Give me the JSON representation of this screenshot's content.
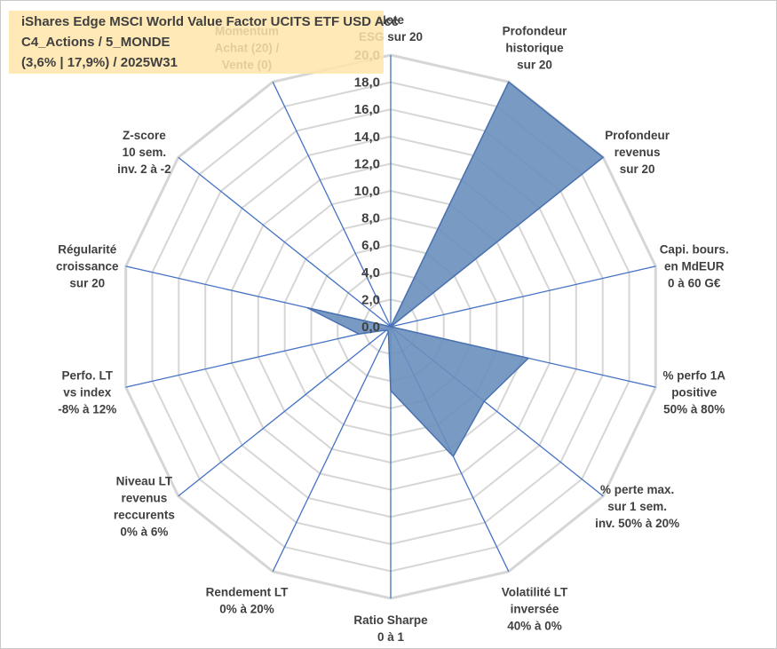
{
  "title_lines": [
    "iShares Edge MSCI World Value Factor UCITS ETF USD Acc",
    "C4_Actions / 5_MONDE",
    "(3,6% | 17,9%) / 2025W31"
  ],
  "chart_data": {
    "type": "radar",
    "categories": [
      [
        "Note",
        "ESG sur 20"
      ],
      [
        "Profondeur",
        "historique",
        "sur 20"
      ],
      [
        "Profondeur",
        "revenus",
        "sur 20"
      ],
      [
        "Capi. bours.",
        "en MdEUR",
        "0 à 60 G€"
      ],
      [
        "% perfo 1A",
        "positive",
        "50% à 80%"
      ],
      [
        "% perte max.",
        "sur 1 sem.",
        "inv. 50% à 20%"
      ],
      [
        "Volatilité LT",
        "inversée",
        "40% à 0%"
      ],
      [
        "Ratio Sharpe",
        "0 à 1"
      ],
      [
        "Rendement LT",
        "0% à 20%"
      ],
      [
        "Niveau LT",
        "revenus",
        "reccurents",
        "0% à 6%"
      ],
      [
        "Perfo. LT",
        "vs index",
        "-8% à 12%"
      ],
      [
        "Régularité",
        "croissance",
        "sur 20"
      ],
      [
        "Z-score",
        "10 sem.",
        "inv. 2 à -2"
      ],
      [
        "Momentum",
        "Achat (20) /",
        "Vente (0)"
      ]
    ],
    "values": [
      0,
      20,
      20,
      0,
      10.4,
      8.8,
      10.6,
      4.7,
      0.4,
      0.4,
      2.4,
      6.3,
      0,
      0
    ],
    "rlim": [
      0,
      20
    ],
    "ticks": [
      "0,0",
      "2,0",
      "4,0",
      "6,0",
      "8,0",
      "10,0",
      "12,0",
      "14,0",
      "16,0",
      "18,0",
      "20,0"
    ],
    "grid": true,
    "colors": {
      "fill": "#6a8fbd",
      "stroke": "#4a72b0",
      "grid": "#d6d6d6",
      "spoke": "#4472c4"
    }
  }
}
